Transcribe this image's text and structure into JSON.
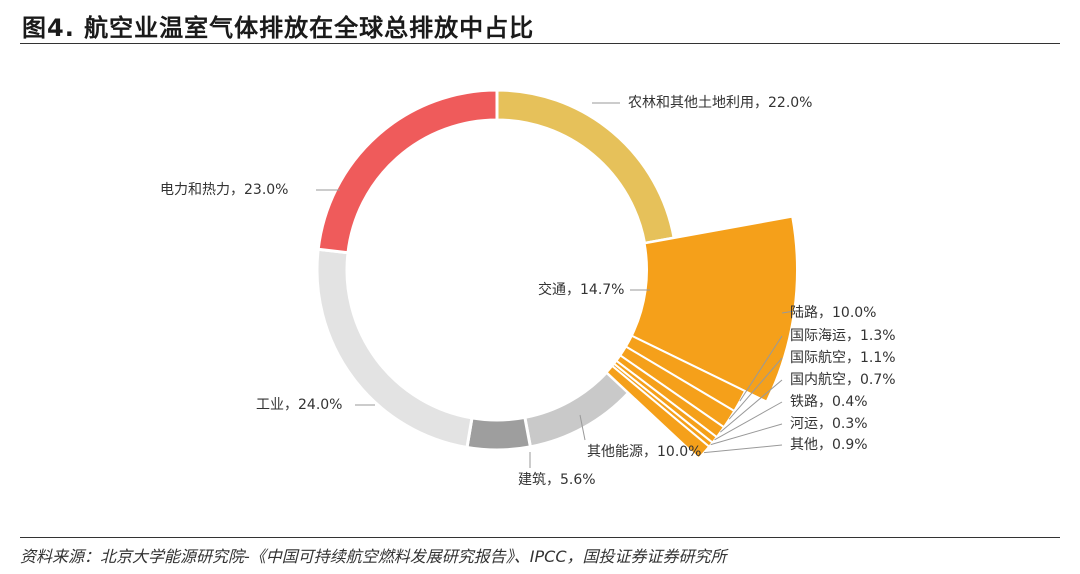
{
  "title": "图4. 航空业温室气体排放在全球总排放中占比",
  "source": "资料来源：北京大学能源研究院-《中国可持续航空燃料发展研究报告》、IPCC，国投证券证券研究所",
  "chart_data": {
    "type": "pie",
    "subtype": "donut-with-exploded-breakdown",
    "unit": "%",
    "slices": [
      {
        "name": "农林和其他土地利用",
        "value": 22.0,
        "label": "农林和其他土地利用，22.0%",
        "color": "#E6C15A"
      },
      {
        "name": "交通",
        "value": 14.7,
        "label": "交通，14.7%",
        "color": "#F5A01A"
      },
      {
        "name": "其他能源",
        "value": 10.0,
        "label": "其他能源，10.0%",
        "color": "#C9C9C9"
      },
      {
        "name": "建筑",
        "value": 5.6,
        "label": "建筑，5.6%",
        "color": "#9E9E9E"
      },
      {
        "name": "工业",
        "value": 24.0,
        "label": "工业，24.0%",
        "color": "#E3E3E3"
      },
      {
        "name": "电力和热力",
        "value": 23.0,
        "label": "电力和热力，23.0%",
        "color": "#EF5B5B"
      }
    ],
    "breakdown": {
      "parent": "交通",
      "color": "#F5A01A",
      "items": [
        {
          "name": "陆路",
          "value": 10.0,
          "label": "陆路，10.0%"
        },
        {
          "name": "国际海运",
          "value": 1.3,
          "label": "国际海运，1.3%"
        },
        {
          "name": "国际航空",
          "value": 1.1,
          "label": "国际航空，1.1%"
        },
        {
          "name": "国内航空",
          "value": 0.7,
          "label": "国内航空，0.7%"
        },
        {
          "name": "铁路",
          "value": 0.4,
          "label": "铁路，0.4%"
        },
        {
          "name": "河运",
          "value": 0.3,
          "label": "河运，0.3%"
        },
        {
          "name": "其他",
          "value": 0.9,
          "label": "其他，0.9%"
        }
      ]
    }
  }
}
